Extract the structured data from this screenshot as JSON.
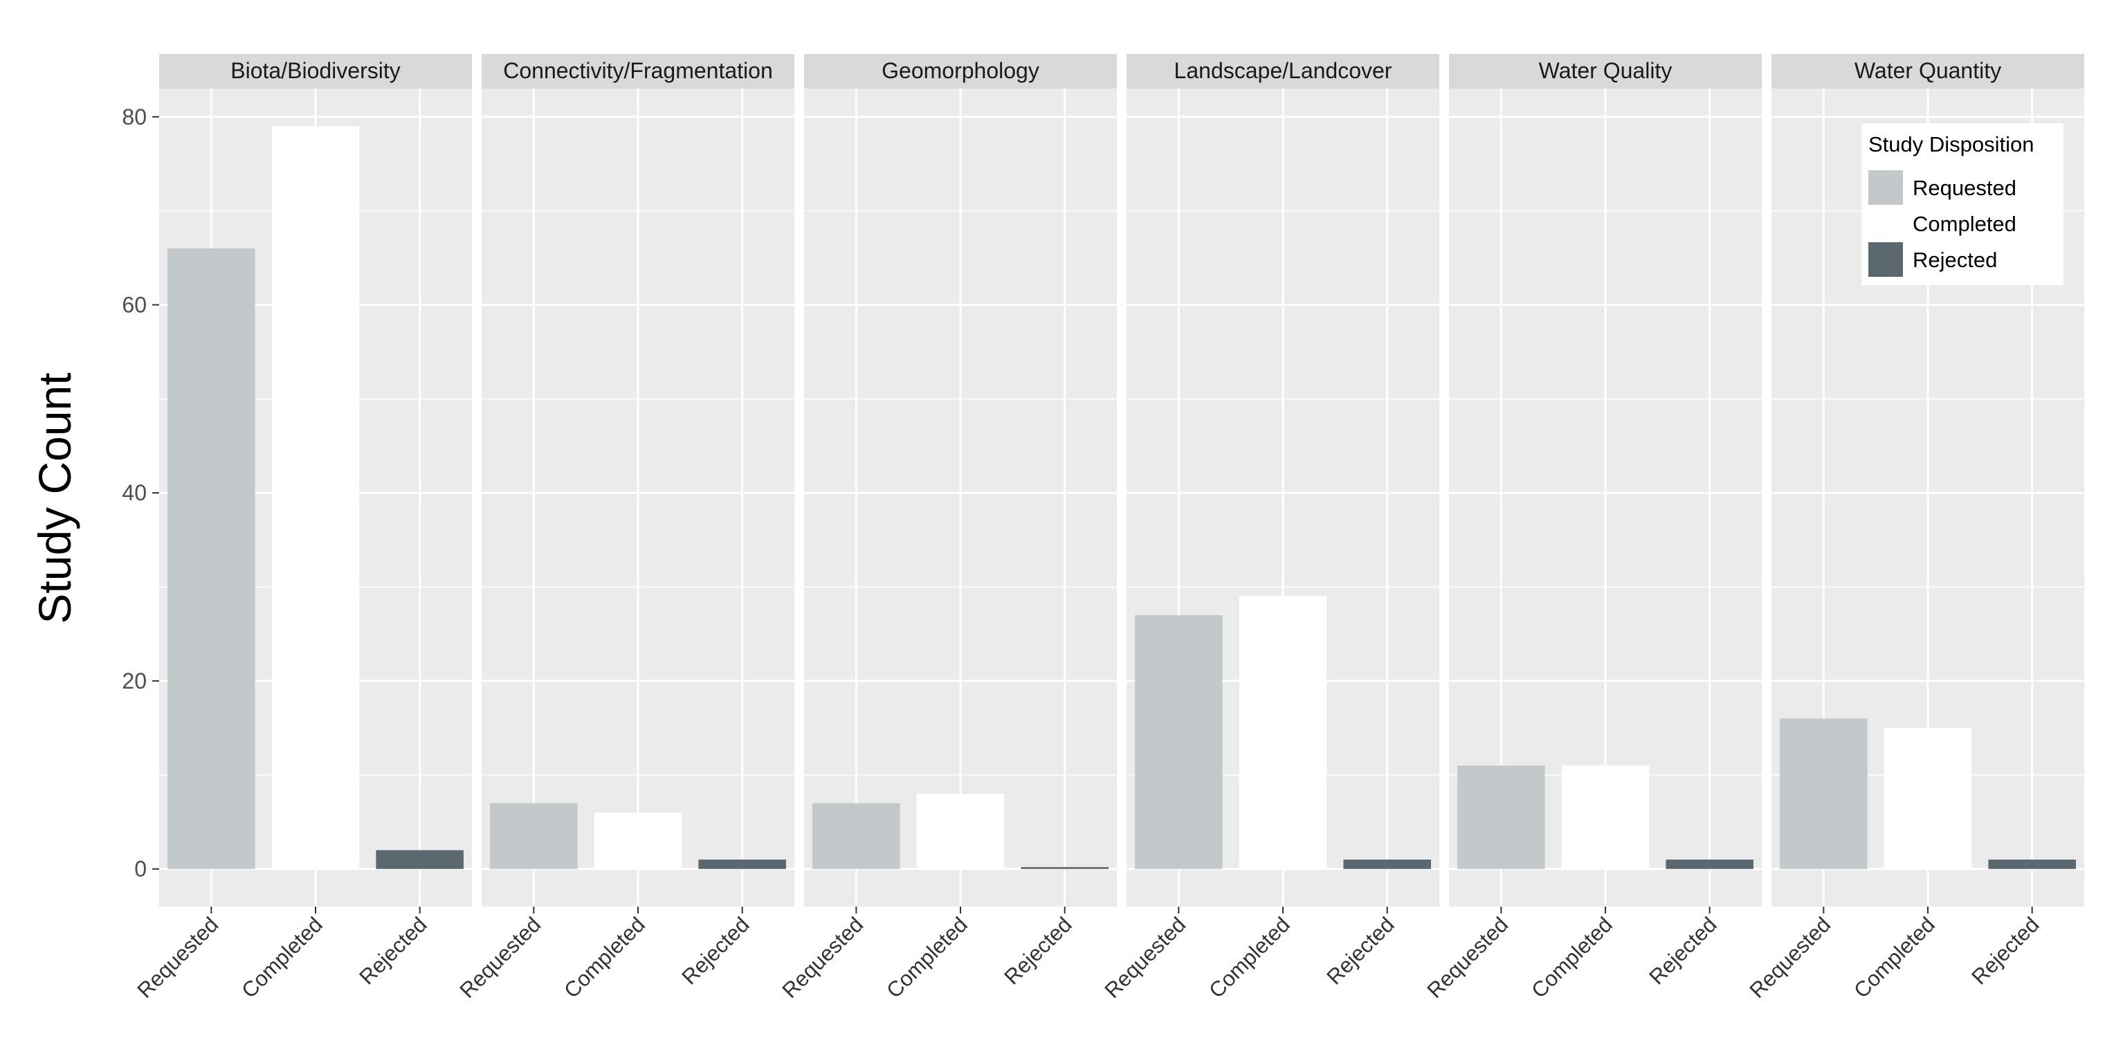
{
  "chart_data": {
    "type": "bar",
    "ylabel": "Study Count",
    "xlabel": "",
    "ylim": [
      -4,
      83
    ],
    "yticks": [
      0,
      20,
      40,
      60,
      80
    ],
    "y_minor_ticks": [
      10,
      30,
      50,
      70
    ],
    "grid": true,
    "categories": [
      "Requested",
      "Completed",
      "Rejected"
    ],
    "facets": [
      {
        "label": "Biota/Biodiversity",
        "values": [
          66,
          79,
          2
        ]
      },
      {
        "label": "Connectivity/Fragmentation",
        "values": [
          7,
          6,
          1
        ]
      },
      {
        "label": "Geomorphology",
        "values": [
          7,
          8,
          0.2
        ]
      },
      {
        "label": "Landscape/Landcover",
        "values": [
          27,
          29,
          1
        ]
      },
      {
        "label": "Water Quality",
        "values": [
          11,
          11,
          1
        ]
      },
      {
        "label": "Water Quantity",
        "values": [
          16,
          15,
          1
        ]
      }
    ],
    "legend": {
      "title": "Study Disposition",
      "placement": "top-right",
      "items": [
        "Requested",
        "Completed",
        "Rejected"
      ]
    },
    "colors": {
      "Requested": "#c3c9ca",
      "Completed": "#ffffff",
      "Rejected": "#5b6870",
      "panel_background": "#ebebeb",
      "strip_background": "#d9d9d9",
      "grid": "#ffffff"
    }
  }
}
